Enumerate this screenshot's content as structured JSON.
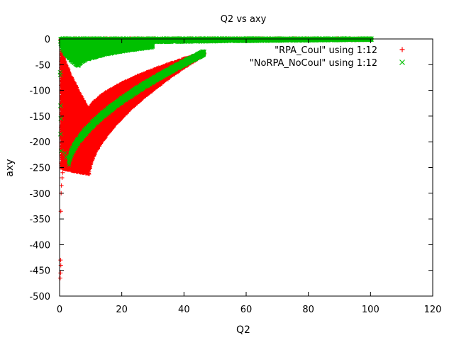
{
  "chart_data": {
    "type": "scatter",
    "title": "Q2 vs axy",
    "xlabel": "Q2",
    "ylabel": "axy",
    "xlim": [
      0,
      120
    ],
    "ylim": [
      -500,
      0
    ],
    "x_ticks": [
      0,
      20,
      40,
      60,
      80,
      100,
      120
    ],
    "y_ticks": [
      0,
      -50,
      -100,
      -150,
      -200,
      -250,
      -300,
      -350,
      -400,
      -450,
      -500
    ],
    "grid": false,
    "legend_position": "top-right",
    "series": [
      {
        "name": "\"RPA_Coul\" using 1:12",
        "marker": "+",
        "color": "#ff0000",
        "bands": [
          {
            "x_start": 0.3,
            "x_end": 100.3,
            "lower_start": -4,
            "lower_end": -1,
            "upper": 0,
            "curve": 0.2
          },
          {
            "x_start": 9.5,
            "x_end": 46.5,
            "lower_start": -262,
            "lower_end": -30,
            "upper_start": -140,
            "upper_end": -27,
            "curve": 0.6
          },
          {
            "x_start": 0.5,
            "x_end": 9.5,
            "lower_start": -250,
            "lower_end": -262,
            "upper_start": -20,
            "upper_end": -140,
            "curve": 0.8
          }
        ],
        "scatter_points": [
          {
            "x": 0.2,
            "y": -465
          },
          {
            "x": 0.3,
            "y": -455
          },
          {
            "x": 0.4,
            "y": -440
          },
          {
            "x": 0.3,
            "y": -430
          },
          {
            "x": 0.4,
            "y": -335
          },
          {
            "x": 0.5,
            "y": -300
          },
          {
            "x": 0.6,
            "y": -285
          },
          {
            "x": 0.8,
            "y": -270
          },
          {
            "x": 1.0,
            "y": -260
          },
          {
            "x": 0.7,
            "y": -250
          },
          {
            "x": 1.2,
            "y": -235
          }
        ]
      },
      {
        "name": "\"NoRPA_NoCoul\" using 1:12",
        "marker": "x",
        "color": "#00c000",
        "bands": [
          {
            "x_start": 0.3,
            "x_end": 100.3,
            "lower_start": -10,
            "lower_end": -1,
            "upper": 0,
            "curve": 0.5
          },
          {
            "x_start": 0.5,
            "x_end": 6.0,
            "lower_start": -10,
            "lower_end": -52,
            "upper": -3,
            "curve": 0.6
          },
          {
            "x_start": 6.0,
            "x_end": 30.0,
            "lower_start": -52,
            "lower_end": -15,
            "upper": -3,
            "curve": 0.5
          },
          {
            "x_start": 3.0,
            "x_end": 46.5,
            "lower_start": -245,
            "lower_end": -30,
            "upper_start": -237,
            "upper_end": -24,
            "curve": 0.6
          }
        ],
        "scatter_points": [
          {
            "x": 0.2,
            "y": -70
          },
          {
            "x": 0.3,
            "y": -130
          },
          {
            "x": 0.3,
            "y": -185
          },
          {
            "x": 0.5,
            "y": -218
          },
          {
            "x": 1.8,
            "y": -222
          },
          {
            "x": 2.2,
            "y": -230
          },
          {
            "x": 0.2,
            "y": -65
          },
          {
            "x": 0.4,
            "y": -155
          }
        ]
      }
    ]
  }
}
